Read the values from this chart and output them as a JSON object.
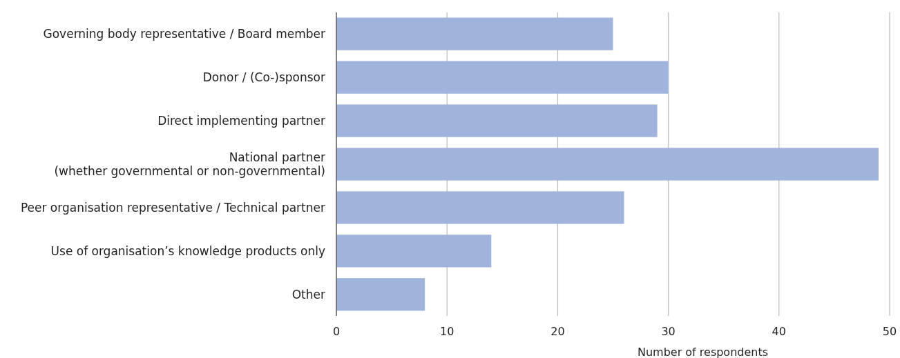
{
  "chart_data": {
    "type": "bar",
    "orientation": "horizontal",
    "xlabel": "Number of respondents",
    "categories": [
      "Governing body representative / Board member",
      "Donor / (Co-)sponsor",
      "Direct implementing partner",
      "National partner\n(whether governmental or non-governmental)",
      "Peer organisation representative / Technical partner",
      "Use of organisation’s knowledge products only",
      "Other"
    ],
    "values": [
      25,
      30,
      29,
      49,
      26,
      14,
      8
    ],
    "color": "#a0b3dc",
    "xlim": [
      0,
      50
    ],
    "xticks": [
      0,
      10,
      20,
      30,
      40,
      50
    ],
    "grid": "x"
  }
}
